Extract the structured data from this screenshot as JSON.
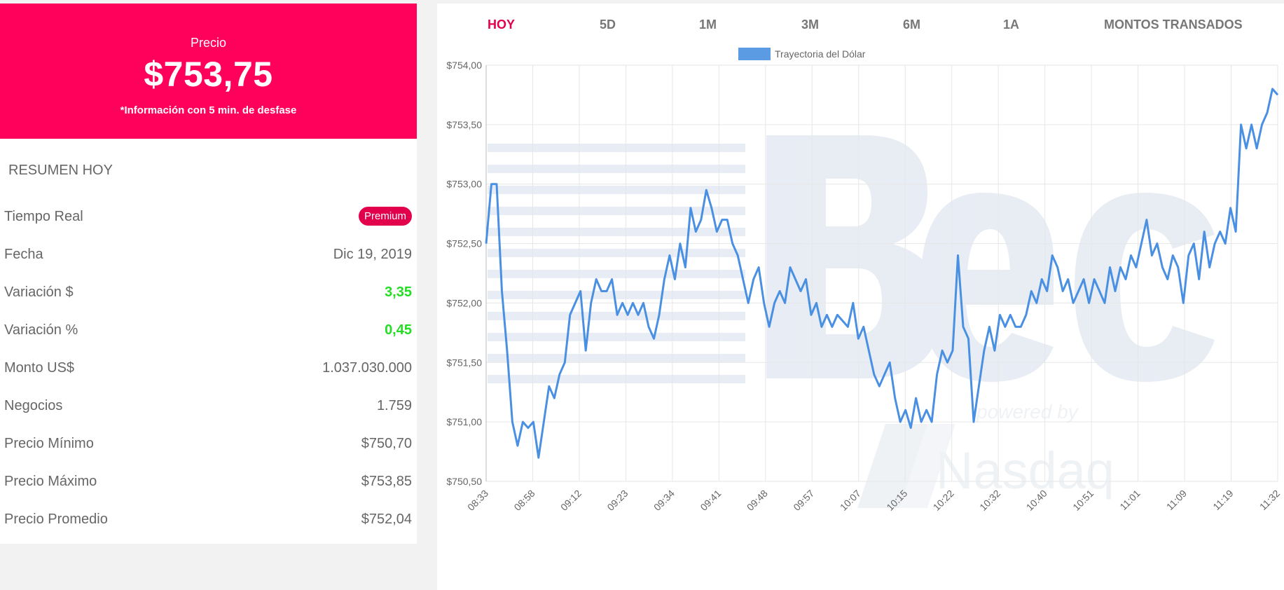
{
  "price_box": {
    "label": "Precio",
    "value": "$753,75",
    "note": "*Información con 5 min. de desfase"
  },
  "summary": {
    "title": "RESUMEN HOY",
    "rows": [
      {
        "label": "Tiempo Real",
        "badge": "Premium"
      },
      {
        "label": "Fecha",
        "value": "Dic 19, 2019"
      },
      {
        "label": "Variación $",
        "value": "3,35"
      },
      {
        "label": "Variación %",
        "value": "0,45"
      },
      {
        "label": "Monto US$",
        "value": "1.037.030.000"
      },
      {
        "label": "Negocios",
        "value": "1.759"
      },
      {
        "label": "Precio Mínimo",
        "value": "$750,70"
      },
      {
        "label": "Precio Máximo",
        "value": "$753,85"
      },
      {
        "label": "Precio Promedio",
        "value": "$752,04"
      }
    ]
  },
  "tabs": [
    {
      "label": "HOY",
      "active": true
    },
    {
      "label": "5D"
    },
    {
      "label": "1M"
    },
    {
      "label": "3M"
    },
    {
      "label": "6M"
    },
    {
      "label": "1A"
    },
    {
      "label": "MONTOS TRANSADOS"
    }
  ],
  "colors": {
    "accent": "#ff005a",
    "badge": "#e2004d",
    "positive": "#22dd22",
    "line": "#4a90e2"
  },
  "chart_data": {
    "type": "line",
    "legend": "Trayectoria del Dólar",
    "legend_position": "top-center",
    "grid": true,
    "ylim": [
      750.5,
      754.0
    ],
    "y_ticks": [
      "$754,00",
      "$753,50",
      "$753,00",
      "$752,50",
      "$752,00",
      "$751,50",
      "$751,00",
      "$750,50"
    ],
    "x_ticks": [
      "08:33",
      "08:58",
      "09:12",
      "09:23",
      "09:34",
      "09:41",
      "09:48",
      "09:57",
      "10:07",
      "10:15",
      "10:22",
      "10:32",
      "10:40",
      "10:51",
      "11:01",
      "11:09",
      "11:19",
      "11:32"
    ],
    "series": [
      {
        "values": [
          752.5,
          753.0,
          753.0,
          752.1,
          751.6,
          751.0,
          750.8,
          751.0,
          750.95,
          751.0,
          750.7,
          751.0,
          751.3,
          751.2,
          751.4,
          751.5,
          751.9,
          752.0,
          752.1,
          751.6,
          752.0,
          752.2,
          752.1,
          752.1,
          752.2,
          751.9,
          752.0,
          751.9,
          752.0,
          751.9,
          752.0,
          751.8,
          751.7,
          751.9,
          752.2,
          752.4,
          752.2,
          752.5,
          752.3,
          752.8,
          752.6,
          752.7,
          752.95,
          752.8,
          752.6,
          752.7,
          752.7,
          752.5,
          752.4,
          752.2,
          752.0,
          752.2,
          752.3,
          752.0,
          751.8,
          752.0,
          752.1,
          752.0,
          752.3,
          752.2,
          752.1,
          752.2,
          751.9,
          752.0,
          751.8,
          751.9,
          751.8,
          751.9,
          751.85,
          751.8,
          752.0,
          751.7,
          751.8,
          751.6,
          751.4,
          751.3,
          751.4,
          751.5,
          751.2,
          751.0,
          751.1,
          750.95,
          751.2,
          751.0,
          751.1,
          751.0,
          751.4,
          751.6,
          751.5,
          751.6,
          752.4,
          751.8,
          751.7,
          751.0,
          751.3,
          751.6,
          751.8,
          751.6,
          751.9,
          751.8,
          751.9,
          751.8,
          751.8,
          751.9,
          752.1,
          752.0,
          752.2,
          752.1,
          752.4,
          752.3,
          752.1,
          752.2,
          752.0,
          752.1,
          752.2,
          752.0,
          752.2,
          752.1,
          752.0,
          752.3,
          752.1,
          752.3,
          752.2,
          752.4,
          752.3,
          752.5,
          752.7,
          752.4,
          752.5,
          752.3,
          752.2,
          752.4,
          752.3,
          752.0,
          752.4,
          752.5,
          752.2,
          752.6,
          752.3,
          752.5,
          752.6,
          752.5,
          752.8,
          752.6,
          753.5,
          753.3,
          753.5,
          753.3,
          753.5,
          753.6,
          753.8,
          753.75
        ]
      }
    ]
  }
}
